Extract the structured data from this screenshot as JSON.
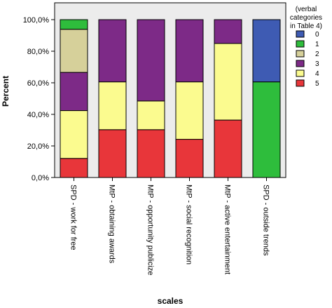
{
  "chart_data": {
    "type": "bar",
    "stacked": true,
    "categories": [
      "SPD - work for free",
      "MtP - obtaining awards",
      "MtP - opportunity publicize",
      "MtP - social recognition",
      "MtP - active entertainment",
      "SPD - outside trends"
    ],
    "series": [
      {
        "name": "5",
        "color": "#e8363a",
        "values": [
          12.1,
          30.3,
          30.3,
          24.2,
          36.4,
          0
        ]
      },
      {
        "name": "4",
        "color": "#fbfb8f",
        "values": [
          30.3,
          30.3,
          18.2,
          36.4,
          48.5,
          0
        ]
      },
      {
        "name": "3",
        "color": "#7d2a87",
        "values": [
          24.2,
          39.4,
          51.5,
          39.4,
          15.1,
          0
        ]
      },
      {
        "name": "2",
        "color": "#d6d09a",
        "values": [
          27.3,
          0,
          0,
          0,
          0,
          0
        ]
      },
      {
        "name": "1",
        "color": "#2ebd3c",
        "values": [
          6.1,
          0,
          0,
          0,
          0,
          60.6
        ]
      },
      {
        "name": "0",
        "color": "#3e5bb3",
        "values": [
          0,
          0,
          0,
          0,
          0,
          39.4
        ]
      }
    ],
    "ylim": [
      0,
      100
    ],
    "yticks": [
      "0,0%",
      "20,0%",
      "40,0%",
      "60,0%",
      "80,0%",
      "100,0%"
    ],
    "ylabel": "Percent",
    "xlabel": "scales",
    "legend": {
      "title": "(verbal categories in Table 4)",
      "title_lines": [
        "(verbal",
        "categories",
        "in Table 4)"
      ],
      "order": [
        "0",
        "1",
        "2",
        "3",
        "4",
        "5"
      ],
      "placement": "right"
    },
    "grid": false,
    "background": "#ececec"
  }
}
